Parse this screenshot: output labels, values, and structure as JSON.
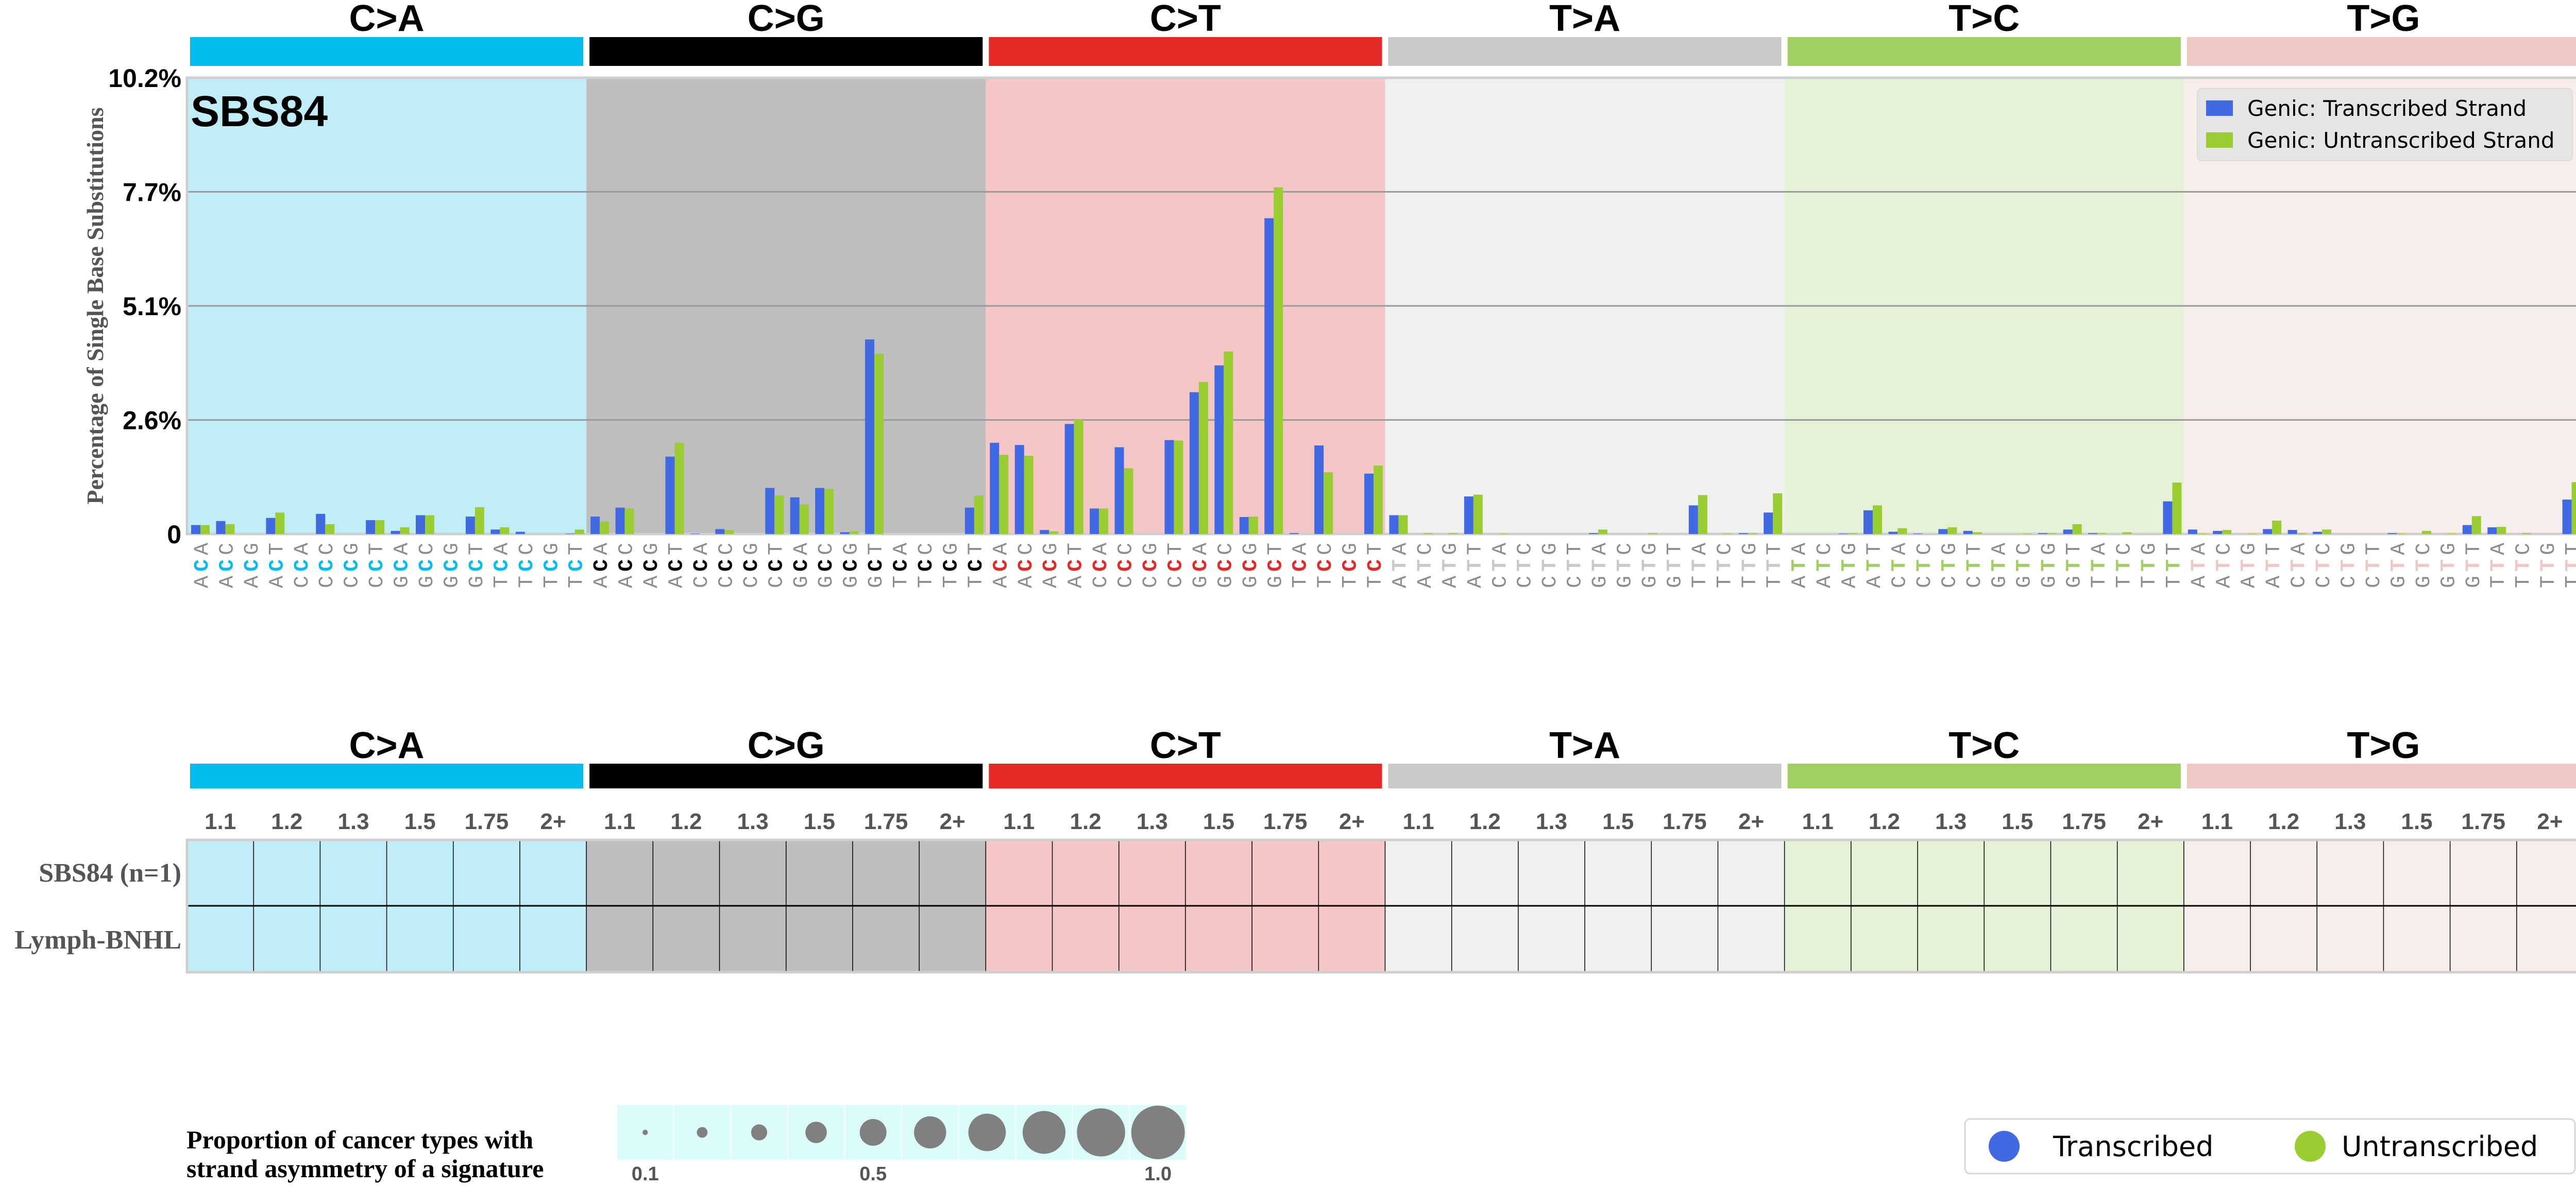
{
  "chart_data": {
    "type": "bar",
    "signature_label": "SBS84",
    "ylabel": "Percentage of Single Base Substitutions",
    "ylim": [
      0,
      10.2
    ],
    "yticks": [
      0,
      2.55,
      5.1,
      7.65,
      10.2
    ],
    "ytick_labels": [
      "0",
      "2.6%",
      "5.1%",
      "7.7%",
      "10.2%"
    ],
    "grid": true,
    "legend_placement": "top-right",
    "series_names": [
      "Genic: Transcribed Strand",
      "Genic: Untranscribed Strand"
    ],
    "series_colors": [
      "#4169e1",
      "#9acd32"
    ],
    "mutation_types": [
      {
        "name": "C>A",
        "color": "#03bcee",
        "bg": "#bfeef8",
        "contexts": [
          "ACA",
          "ACC",
          "ACG",
          "ACT",
          "CCA",
          "CCC",
          "CCG",
          "CCT",
          "GCA",
          "GCC",
          "GCG",
          "GCT",
          "TCA",
          "TCC",
          "TCG",
          "TCT"
        ],
        "transcribed": [
          0.2,
          0.29,
          0,
          0.36,
          0,
          0.45,
          0,
          0.31,
          0.07,
          0.42,
          0,
          0.39,
          0.1,
          0.05,
          0,
          0.01
        ],
        "untranscribed": [
          0.2,
          0.22,
          0,
          0.48,
          0,
          0.22,
          0,
          0.31,
          0.15,
          0.42,
          0,
          0.6,
          0.15,
          0,
          0,
          0.1
        ]
      },
      {
        "name": "C>G",
        "color": "#010101",
        "bg": "#bebebe",
        "contexts": [
          "ACA",
          "ACC",
          "ACG",
          "ACT",
          "CCA",
          "CCC",
          "CCG",
          "CCT",
          "GCA",
          "GCC",
          "GCG",
          "GCT",
          "TCA",
          "TCC",
          "TCG",
          "TCT"
        ],
        "transcribed": [
          0.39,
          0.59,
          0,
          1.73,
          0.01,
          0.11,
          0,
          1.03,
          0.82,
          1.03,
          0.04,
          4.35,
          0,
          0,
          0,
          0.59
        ],
        "untranscribed": [
          0.28,
          0.57,
          0,
          2.04,
          0,
          0.09,
          0,
          0.86,
          0.66,
          1.01,
          0.06,
          4.03,
          0,
          0,
          0,
          0.86
        ]
      },
      {
        "name": "C>T",
        "color": "#e32926",
        "bg": "#f5c6c6",
        "contexts": [
          "ACA",
          "ACC",
          "ACG",
          "ACT",
          "CCA",
          "CCC",
          "CCG",
          "CCT",
          "GCA",
          "GCC",
          "GCG",
          "GCT",
          "TCA",
          "TCC",
          "TCG",
          "TCT"
        ],
        "transcribed": [
          2.04,
          1.99,
          0.09,
          2.46,
          0.57,
          1.94,
          0,
          2.1,
          3.17,
          3.77,
          0.38,
          7.06,
          0.02,
          1.98,
          0,
          1.35
        ],
        "untranscribed": [
          1.77,
          1.75,
          0.06,
          2.56,
          0.57,
          1.47,
          0,
          2.09,
          3.4,
          4.08,
          0.39,
          7.75,
          0,
          1.38,
          0,
          1.53
        ]
      },
      {
        "name": "T>A",
        "color": "#cac9c9",
        "bg": "#f0f0f0",
        "contexts": [
          "ATA",
          "ATC",
          "ATG",
          "ATT",
          "CTA",
          "CTC",
          "CTG",
          "CTT",
          "GTA",
          "GTC",
          "GTG",
          "GTT",
          "TTA",
          "TTC",
          "TTG",
          "TTT"
        ],
        "transcribed": [
          0.42,
          0,
          0,
          0.84,
          0,
          0,
          0,
          0,
          0.02,
          0,
          0,
          0,
          0.64,
          0,
          0.02,
          0.48
        ],
        "untranscribed": [
          0.42,
          0.02,
          0.02,
          0.88,
          0.01,
          0,
          0,
          0,
          0.1,
          0,
          0.02,
          0,
          0.87,
          0.01,
          0.02,
          0.91
        ]
      },
      {
        "name": "T>C",
        "color": "#a1cf64",
        "bg": "#e5f2d7",
        "contexts": [
          "ATA",
          "ATC",
          "ATG",
          "ATT",
          "CTA",
          "CTC",
          "CTG",
          "CTT",
          "GTA",
          "GTC",
          "GTG",
          "GTT",
          "TTA",
          "TTC",
          "TTG",
          "TTT"
        ],
        "transcribed": [
          0,
          0,
          0.01,
          0.53,
          0.05,
          0.01,
          0.11,
          0.07,
          0,
          0,
          0.02,
          0.1,
          0.02,
          0,
          0,
          0.73
        ],
        "untranscribed": [
          0,
          0,
          0.02,
          0.64,
          0.13,
          0,
          0.15,
          0.04,
          0,
          0.01,
          0.02,
          0.22,
          0.02,
          0.04,
          0,
          1.15
        ]
      },
      {
        "name": "T>G",
        "color": "#edc8c5",
        "bg": "#f7eeec",
        "contexts": [
          "ATA",
          "ATC",
          "ATG",
          "ATT",
          "CTA",
          "CTC",
          "CTG",
          "CTT",
          "GTA",
          "GTC",
          "GTG",
          "GTT",
          "TTA",
          "TTC",
          "TTG",
          "TTT"
        ],
        "transcribed": [
          0.1,
          0.07,
          0,
          0.11,
          0.09,
          0.05,
          0,
          0,
          0.02,
          0,
          0,
          0.2,
          0.15,
          0,
          0,
          0.77
        ],
        "untranscribed": [
          0.01,
          0.09,
          0.01,
          0.3,
          0.02,
          0.1,
          0,
          0,
          0.01,
          0.07,
          0.01,
          0.4,
          0.16,
          0.02,
          0,
          1.16
        ]
      }
    ]
  },
  "lower_panel": {
    "bins": [
      "1.1",
      "1.2",
      "1.3",
      "1.5",
      "1.75",
      "2+"
    ],
    "rows": [
      "SBS84 (n=1)",
      "Lymph-BNHL"
    ]
  },
  "bubble_legend": {
    "title_lines": [
      "Proportion of cancer types with",
      "strand asymmetry of a signature"
    ],
    "values": [
      0.1,
      0.2,
      0.3,
      0.4,
      0.5,
      0.6,
      0.7,
      0.8,
      0.9,
      1.0
    ],
    "labels": [
      "0.1",
      "0.5",
      "1.0"
    ],
    "bubble_color": "#808080",
    "cell_color": "#dcfcfc"
  },
  "strand_legend": {
    "items": [
      {
        "label": "Transcribed",
        "color": "#4169e1"
      },
      {
        "label": "Untranscribed",
        "color": "#9acd32"
      }
    ]
  }
}
